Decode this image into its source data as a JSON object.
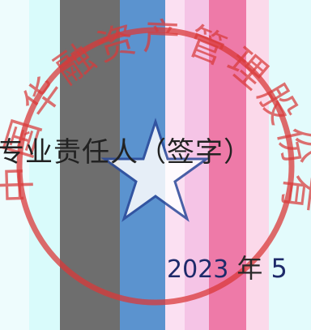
{
  "document": {
    "signature_line": "专业责任人（签字）",
    "date": {
      "year": "2023",
      "year_label": "年",
      "month": "5"
    }
  },
  "seal": {
    "text": "中国华融资产管理股份有限公司",
    "color": "#d93a3a"
  },
  "colors": {
    "band_gray": "#6e6e6e",
    "band_blue": "#5b93cf",
    "band_pink": "#f2a3c8",
    "band_rose": "#ee7aa8",
    "band_magenta": "#f0b7e0",
    "band_cyan": "#d8fbfb"
  }
}
